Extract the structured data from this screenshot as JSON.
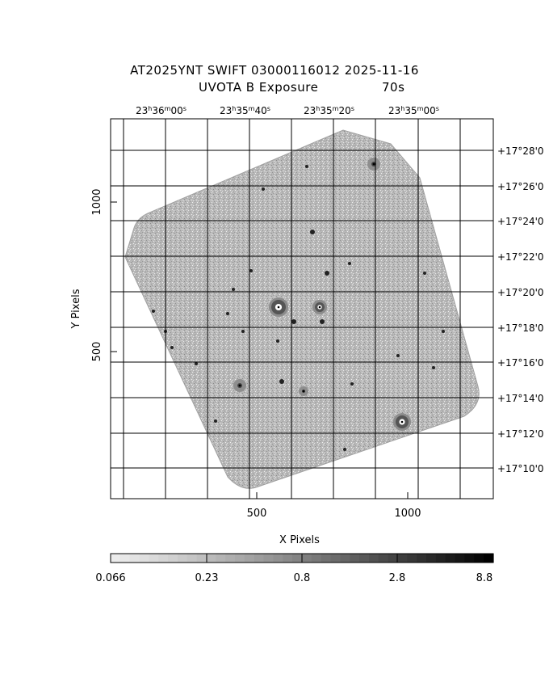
{
  "title": {
    "line1": "AT2025YNT SWIFT 03000116012 2025-11-16",
    "line2_left": "UVOTA B Exposure",
    "line2_right": "70s"
  },
  "axes": {
    "xlabel": "X Pixels",
    "ylabel": "Y Pixels",
    "x_ticks": [
      "500",
      "1000"
    ],
    "y_ticks": [
      "500",
      "1000"
    ]
  },
  "ra_labels": [
    {
      "h": "23",
      "m": "36",
      "s": "00"
    },
    {
      "h": "23",
      "m": "35",
      "s": "40"
    },
    {
      "h": "23",
      "m": "35",
      "s": "20"
    },
    {
      "h": "23",
      "m": "35",
      "s": "00"
    }
  ],
  "dec_labels": [
    "+17°28'0",
    "+17°26'0",
    "+17°24'0",
    "+17°22'0",
    "+17°20'0",
    "+17°18'0",
    "+17°16'0",
    "+17°14'0",
    "+17°12'0",
    "+17°10'0"
  ],
  "colorbar": {
    "ticks": [
      "0.066",
      "0.23",
      "0.8",
      "2.8",
      "8.8"
    ]
  },
  "colors": {
    "background": "#ffffff",
    "exposure_gray": "#a8a8a8",
    "grid": "#000000"
  }
}
